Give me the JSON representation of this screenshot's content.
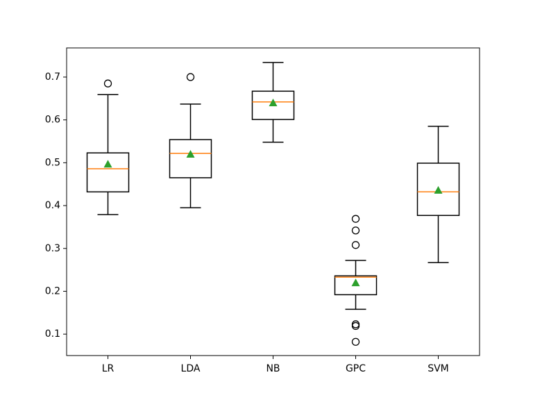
{
  "chart_data": {
    "type": "box",
    "categories": [
      "LR",
      "LDA",
      "NB",
      "GPC",
      "SVM"
    ],
    "box_color": "#000000",
    "median_color": "#ff7f0e",
    "mean_color": "#2ca02c",
    "boxes": [
      {
        "whisker_low": 0.379,
        "q1": 0.432,
        "median": 0.486,
        "q3": 0.523,
        "whisker_high": 0.659,
        "mean": 0.497,
        "outliers": [
          0.685
        ]
      },
      {
        "whisker_low": 0.395,
        "q1": 0.465,
        "median": 0.522,
        "q3": 0.554,
        "whisker_high": 0.637,
        "mean": 0.52,
        "outliers": [
          0.7
        ]
      },
      {
        "whisker_low": 0.548,
        "q1": 0.601,
        "median": 0.642,
        "q3": 0.667,
        "whisker_high": 0.734,
        "mean": 0.64,
        "outliers": []
      },
      {
        "whisker_low": 0.158,
        "q1": 0.192,
        "median": 0.233,
        "q3": 0.236,
        "whisker_high": 0.272,
        "mean": 0.22,
        "outliers": [
          0.369,
          0.342,
          0.308,
          0.123,
          0.119,
          0.082
        ]
      },
      {
        "whisker_low": 0.267,
        "q1": 0.377,
        "median": 0.432,
        "q3": 0.499,
        "whisker_high": 0.585,
        "mean": 0.436,
        "outliers": []
      }
    ],
    "ylim": [
      0.05,
      0.768
    ],
    "yticks": [
      0.1,
      0.2,
      0.3,
      0.4,
      0.5,
      0.6,
      0.7
    ]
  }
}
